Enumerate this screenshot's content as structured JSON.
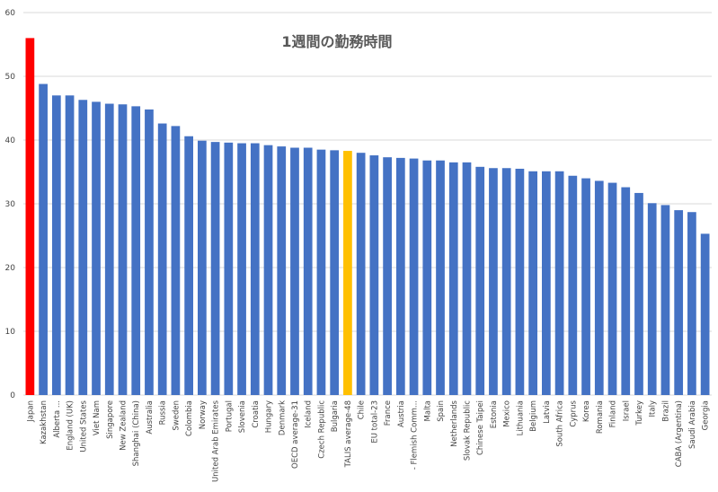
{
  "chart_data": {
    "type": "bar",
    "title": "1週間の勤務時間",
    "xlabel": "",
    "ylabel": "",
    "ylim": [
      0,
      60
    ],
    "yticks": [
      0,
      10,
      20,
      30,
      40,
      50,
      60
    ],
    "grid": true,
    "legend": "none",
    "categories": [
      "Japan",
      "Kazakhstan",
      "Alberta ...",
      "England (UK)",
      "United States",
      "Viet Nam",
      "Singapore",
      "New Zealand",
      "Shanghai (China)",
      "Australia",
      "Russia",
      "Sweden",
      "Colombia",
      "Norway",
      "United Arab Emirates",
      "Portugal",
      "Slovenia",
      "Croatia",
      "Hungary",
      "Denmark",
      "OECD average-31",
      "Iceland",
      "Czech Republic",
      "Bulgaria",
      "TALIS average-48",
      "Chile",
      "EU total-23",
      "France",
      "Austria",
      "- Flemish Comm...",
      "Malta",
      "Spain",
      "Netherlands",
      "Slovak Republic",
      "Chinese Taipei",
      "Estonia",
      "Mexico",
      "Lithuania",
      "Belgium",
      "Latvia",
      "South Africa",
      "Cyprus",
      "Korea",
      "Romania",
      "Finland",
      "Israel",
      "Turkey",
      "Italy",
      "Brazil",
      "CABA (Argentina)",
      "Saudi Arabia",
      "Georgia"
    ],
    "values": [
      56.0,
      48.8,
      47.0,
      47.0,
      46.3,
      46.0,
      45.7,
      45.6,
      45.3,
      44.8,
      42.6,
      42.2,
      40.6,
      39.9,
      39.7,
      39.6,
      39.5,
      39.5,
      39.2,
      39.0,
      38.8,
      38.8,
      38.5,
      38.4,
      38.3,
      38.0,
      37.6,
      37.3,
      37.2,
      37.1,
      36.8,
      36.8,
      36.5,
      36.5,
      35.8,
      35.6,
      35.6,
      35.5,
      35.1,
      35.1,
      35.1,
      34.4,
      34.0,
      33.6,
      33.3,
      32.6,
      31.7,
      30.1,
      29.8,
      29.0,
      28.7,
      25.3
    ],
    "colors": {
      "default": "#4472C4",
      "Japan": "#FF0000",
      "TALIS average-48": "#FFC000",
      "grid": "#D9D9D9",
      "text": "#444444"
    }
  }
}
